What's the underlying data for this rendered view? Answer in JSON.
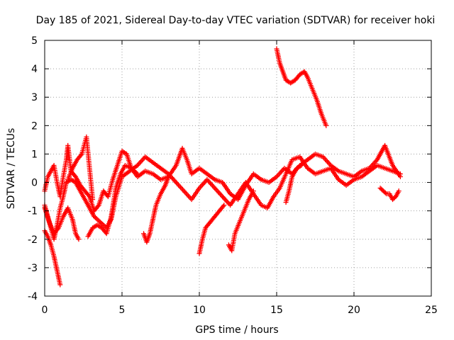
{
  "chart_data": {
    "type": "scatter",
    "title": "Day 185 of 2021, Sidereal Day-to-day VTEC variation (SDTVAR) for receiver hoki",
    "xlabel": "GPS time / hours",
    "ylabel": "SDTVAR / TECUs",
    "xlim": [
      0,
      25
    ],
    "ylim": [
      -4,
      5
    ],
    "xticks": [
      0,
      5,
      10,
      15,
      20,
      25
    ],
    "yticks": [
      -4,
      -3,
      -2,
      -1,
      0,
      1,
      2,
      3,
      4,
      5
    ],
    "grid": true,
    "marker": "+",
    "color": "#ff0000",
    "series": [
      {
        "name": "trace-a",
        "points": [
          [
            0.0,
            -0.3
          ],
          [
            0.2,
            0.2
          ],
          [
            0.4,
            0.4
          ],
          [
            0.6,
            0.6
          ],
          [
            0.8,
            0.0
          ],
          [
            1.0,
            -0.5
          ],
          [
            1.2,
            0.2
          ],
          [
            1.4,
            0.8
          ],
          [
            1.5,
            1.3
          ],
          [
            1.7,
            0.4
          ],
          [
            2.0,
            0.2
          ],
          [
            2.3,
            -0.1
          ],
          [
            2.6,
            -0.3
          ],
          [
            2.9,
            -0.5
          ],
          [
            3.2,
            -1.0
          ],
          [
            3.5,
            -0.8
          ],
          [
            3.8,
            -0.3
          ],
          [
            4.1,
            -0.5
          ],
          [
            4.4,
            0.1
          ],
          [
            4.7,
            0.6
          ],
          [
            5.0,
            1.1
          ],
          [
            5.3,
            1.0
          ],
          [
            5.6,
            0.5
          ],
          [
            6.0,
            0.2
          ],
          [
            6.5,
            0.4
          ],
          [
            7.0,
            0.3
          ],
          [
            7.5,
            0.1
          ],
          [
            8.0,
            0.2
          ],
          [
            8.5,
            0.6
          ],
          [
            8.9,
            1.2
          ],
          [
            9.2,
            0.8
          ],
          [
            9.5,
            0.3
          ],
          [
            10.0,
            0.5
          ],
          [
            10.5,
            0.3
          ],
          [
            11.0,
            0.1
          ],
          [
            11.5,
            0.0
          ],
          [
            12.0,
            -0.4
          ],
          [
            12.5,
            -0.6
          ],
          [
            13.0,
            -0.1
          ],
          [
            13.5,
            0.3
          ],
          [
            14.0,
            0.1
          ],
          [
            14.5,
            0.0
          ],
          [
            15.0,
            0.2
          ],
          [
            15.5,
            0.5
          ],
          [
            16.0,
            0.3
          ],
          [
            16.5,
            0.6
          ],
          [
            17.0,
            0.8
          ],
          [
            17.5,
            1.0
          ],
          [
            18.0,
            0.9
          ],
          [
            18.5,
            0.6
          ],
          [
            19.0,
            0.4
          ],
          [
            19.5,
            0.3
          ],
          [
            20.0,
            0.2
          ],
          [
            20.5,
            0.4
          ],
          [
            21.0,
            0.5
          ],
          [
            21.5,
            0.8
          ],
          [
            22.0,
            1.3
          ],
          [
            22.5,
            0.6
          ],
          [
            23.0,
            0.2
          ]
        ]
      },
      {
        "name": "trace-b",
        "points": [
          [
            0.0,
            -0.8
          ],
          [
            0.2,
            -1.2
          ],
          [
            0.4,
            -1.6
          ],
          [
            0.6,
            -2.0
          ],
          [
            0.8,
            -1.5
          ],
          [
            1.0,
            -0.9
          ],
          [
            1.2,
            -0.5
          ],
          [
            1.4,
            0.0
          ],
          [
            1.7,
            0.1
          ],
          [
            2.0,
            0.0
          ],
          [
            2.4,
            -0.4
          ],
          [
            2.8,
            -0.8
          ],
          [
            3.2,
            -1.2
          ],
          [
            3.6,
            -1.4
          ],
          [
            4.0,
            -1.6
          ],
          [
            4.3,
            -1.3
          ],
          [
            4.6,
            -0.5
          ],
          [
            5.0,
            0.2
          ],
          [
            5.5,
            0.4
          ],
          [
            6.0,
            0.6
          ],
          [
            6.5,
            0.9
          ],
          [
            7.0,
            0.7
          ],
          [
            7.5,
            0.5
          ],
          [
            8.0,
            0.3
          ],
          [
            8.5,
            0.0
          ],
          [
            9.0,
            -0.3
          ],
          [
            9.5,
            -0.6
          ],
          [
            10.0,
            -0.2
          ],
          [
            10.5,
            0.1
          ],
          [
            11.0,
            -0.2
          ],
          [
            11.5,
            -0.5
          ],
          [
            12.0,
            -0.8
          ],
          [
            12.5,
            -0.4
          ],
          [
            13.0,
            0.0
          ],
          [
            13.5,
            -0.4
          ],
          [
            14.0,
            -0.8
          ],
          [
            14.4,
            -0.9
          ],
          [
            14.8,
            -0.5
          ],
          [
            15.2,
            -0.2
          ],
          [
            15.6,
            0.3
          ],
          [
            16.0,
            0.8
          ],
          [
            16.5,
            0.9
          ],
          [
            17.0,
            0.5
          ],
          [
            17.5,
            0.3
          ],
          [
            18.0,
            0.4
          ],
          [
            18.5,
            0.5
          ],
          [
            19.0,
            0.1
          ],
          [
            19.5,
            -0.1
          ],
          [
            20.0,
            0.1
          ],
          [
            20.5,
            0.2
          ],
          [
            21.0,
            0.4
          ],
          [
            21.5,
            0.6
          ],
          [
            22.0,
            0.5
          ],
          [
            22.5,
            0.4
          ],
          [
            23.0,
            0.3
          ]
        ]
      },
      {
        "name": "trace-c",
        "points": [
          [
            0.0,
            -1.7
          ],
          [
            0.2,
            -1.9
          ],
          [
            0.4,
            -2.2
          ],
          [
            0.6,
            -2.6
          ],
          [
            0.8,
            -3.1
          ],
          [
            1.0,
            -3.6
          ]
        ]
      },
      {
        "name": "trace-d",
        "points": [
          [
            0.0,
            -0.9
          ],
          [
            0.3,
            -1.4
          ],
          [
            0.6,
            -1.8
          ],
          [
            0.9,
            -1.6
          ],
          [
            1.2,
            -1.2
          ],
          [
            1.5,
            -0.9
          ],
          [
            1.8,
            -1.3
          ],
          [
            2.0,
            -1.8
          ],
          [
            2.2,
            -2.0
          ]
        ]
      },
      {
        "name": "trace-e",
        "points": [
          [
            1.5,
            0.1
          ],
          [
            1.8,
            0.5
          ],
          [
            2.1,
            0.8
          ],
          [
            2.4,
            1.0
          ],
          [
            2.7,
            1.6
          ],
          [
            2.9,
            0.5
          ],
          [
            3.1,
            -0.6
          ]
        ]
      },
      {
        "name": "trace-f",
        "points": [
          [
            2.8,
            -1.9
          ],
          [
            3.1,
            -1.6
          ],
          [
            3.4,
            -1.5
          ],
          [
            3.7,
            -1.6
          ],
          [
            4.0,
            -1.8
          ],
          [
            4.3,
            -1.2
          ],
          [
            4.6,
            -0.2
          ],
          [
            4.9,
            0.3
          ],
          [
            5.2,
            0.6
          ],
          [
            5.6,
            0.5
          ],
          [
            6.0,
            0.3
          ]
        ]
      },
      {
        "name": "trace-g",
        "points": [
          [
            6.4,
            -1.8
          ],
          [
            6.6,
            -2.1
          ],
          [
            6.8,
            -1.8
          ],
          [
            7.0,
            -1.3
          ],
          [
            7.2,
            -0.8
          ],
          [
            7.5,
            -0.4
          ],
          [
            7.8,
            -0.1
          ],
          [
            8.0,
            0.2
          ]
        ]
      },
      {
        "name": "trace-h",
        "points": [
          [
            10.0,
            -2.5
          ],
          [
            10.2,
            -2.0
          ],
          [
            10.4,
            -1.6
          ],
          [
            10.7,
            -1.4
          ],
          [
            11.0,
            -1.2
          ],
          [
            11.3,
            -1.0
          ],
          [
            11.6,
            -0.8
          ]
        ]
      },
      {
        "name": "trace-i",
        "points": [
          [
            11.9,
            -2.2
          ],
          [
            12.1,
            -2.4
          ],
          [
            12.3,
            -1.8
          ],
          [
            12.6,
            -1.4
          ],
          [
            12.9,
            -1.0
          ],
          [
            13.2,
            -0.6
          ],
          [
            13.5,
            -0.3
          ]
        ]
      },
      {
        "name": "trace-j",
        "points": [
          [
            15.0,
            4.7
          ],
          [
            15.2,
            4.2
          ],
          [
            15.4,
            3.9
          ],
          [
            15.6,
            3.6
          ],
          [
            15.9,
            3.5
          ],
          [
            16.2,
            3.6
          ],
          [
            16.5,
            3.8
          ],
          [
            16.8,
            3.9
          ],
          [
            17.0,
            3.7
          ],
          [
            17.3,
            3.3
          ],
          [
            17.6,
            2.9
          ],
          [
            17.9,
            2.4
          ],
          [
            18.2,
            2.0
          ]
        ]
      },
      {
        "name": "trace-k",
        "points": [
          [
            15.6,
            -0.7
          ],
          [
            15.8,
            -0.3
          ],
          [
            16.0,
            0.2
          ],
          [
            16.3,
            0.5
          ],
          [
            16.6,
            0.6
          ]
        ]
      },
      {
        "name": "trace-l",
        "points": [
          [
            21.7,
            -0.2
          ],
          [
            21.9,
            -0.3
          ],
          [
            22.1,
            -0.4
          ],
          [
            22.3,
            -0.4
          ],
          [
            22.5,
            -0.6
          ],
          [
            22.7,
            -0.5
          ],
          [
            22.9,
            -0.3
          ]
        ]
      }
    ]
  }
}
